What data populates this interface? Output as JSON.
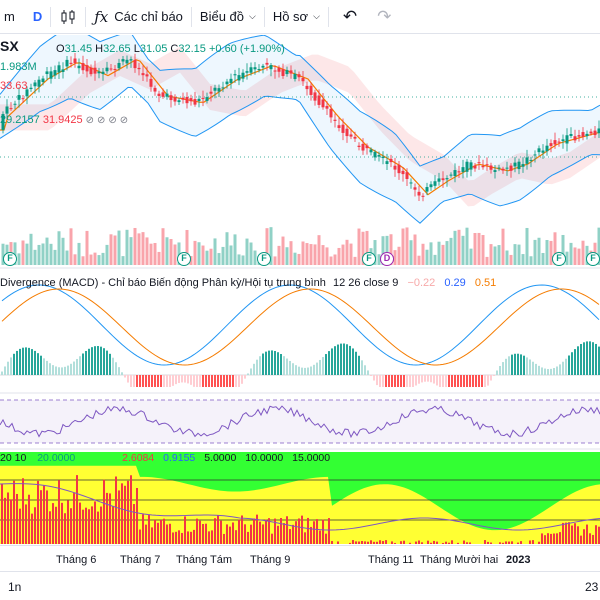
{
  "toolbar": {
    "interval_prefix": "m",
    "interval": "D",
    "indicators_label": "Các chỉ báo",
    "chart_type_label": "Biểu đồ",
    "profile_label": "Hồ sơ"
  },
  "symbol": "SX",
  "ohlc": {
    "o_label": "O",
    "o": "31.45",
    "h_label": "H",
    "h": "32.65",
    "l_label": "L",
    "l": "31.05",
    "c_label": "C",
    "c": "32.15",
    "change": "+0.60 (+1.90%)"
  },
  "volume_value": "1.983M",
  "bb_value": "33.63",
  "ichimoku": {
    "a": "29.2157",
    "b": "31.9425"
  },
  "macd": {
    "title": "Divergence (MACD) - Chỉ báo Biến động Phân kỳ/Hội tụ trung bình",
    "params": "12 26 close 9",
    "v1": "−0.22",
    "v2": "0.29",
    "v3": "0.51"
  },
  "indicator3": {
    "v0": "20",
    "v1": "10",
    "v2": "20.0000",
    "v3": "2.6084",
    "v4": "0.9155",
    "v5": "5.0000",
    "v6": "10.0000",
    "v7": "15.0000"
  },
  "markers": [
    "F",
    "F",
    "F",
    "F",
    "D",
    "F",
    "F"
  ],
  "time_axis": [
    "Tháng 6",
    "Tháng 7",
    "Tháng Tám",
    "Tháng 9",
    "Tháng 11",
    "Tháng Mười hai",
    "2023"
  ],
  "range_button": "1n",
  "clock": "23",
  "colors": {
    "up": "#089981",
    "down": "#f23645",
    "bb": "#2196f3",
    "basis": "#f57c00",
    "rsi": "#7e57c2",
    "accent": "#2962ff",
    "green_fill": "#33ff33",
    "yellow_fill": "#ffff33"
  }
}
